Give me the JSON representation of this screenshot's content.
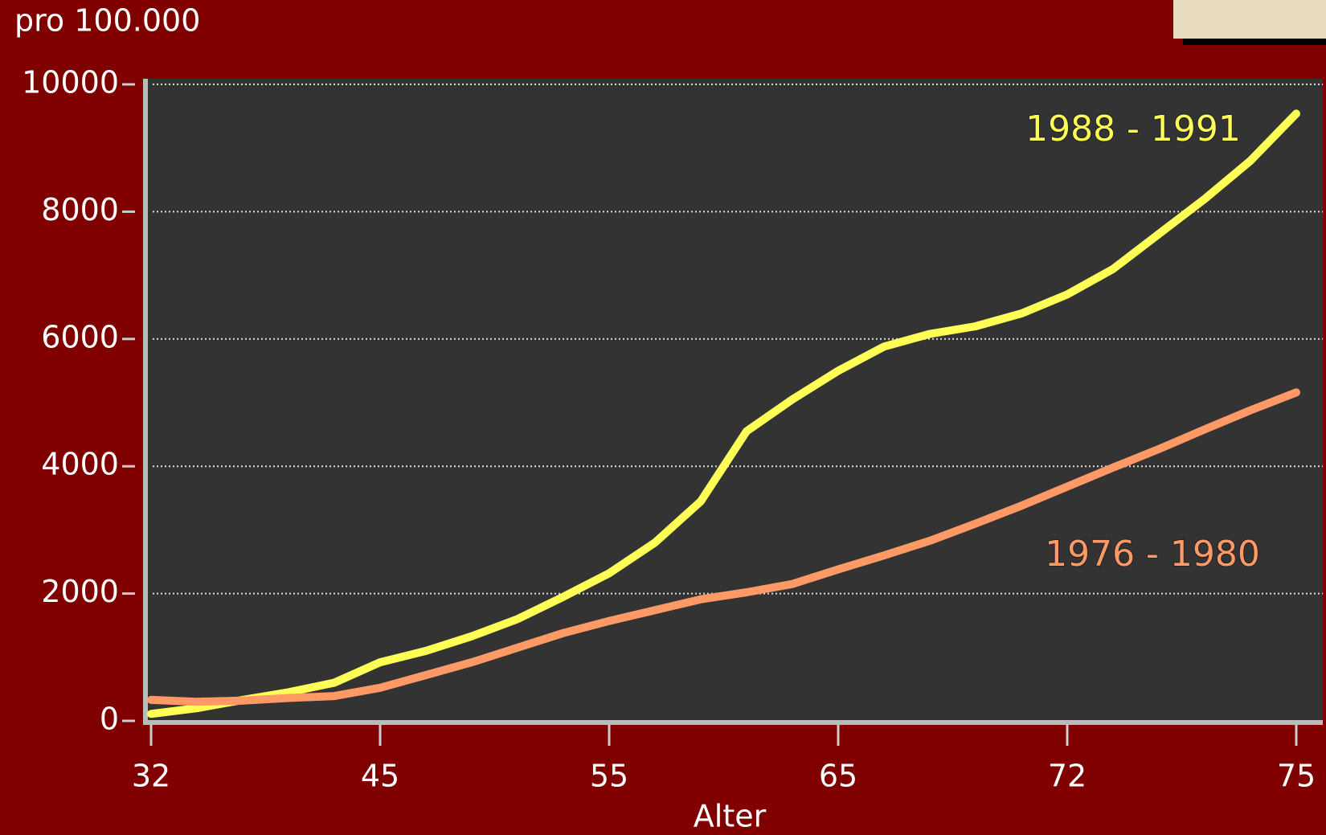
{
  "chart_data": {
    "type": "line",
    "title": "pro 100.000",
    "x_label": "Alter",
    "categories": [
      "32",
      null,
      null,
      null,
      null,
      "45",
      null,
      null,
      null,
      null,
      "55",
      null,
      null,
      null,
      null,
      "65",
      null,
      null,
      null,
      null,
      "72",
      null,
      null,
      null,
      null,
      "75"
    ],
    "series": [
      {
        "name": "1988 - 1991",
        "color": "#ffff55",
        "values": [
          110,
          200,
          330,
          450,
          600,
          920,
          1100,
          1330,
          1600,
          1950,
          2320,
          2800,
          3450,
          4550,
          5050,
          5500,
          5880,
          6080,
          6200,
          6400,
          6700,
          7100,
          7650,
          8200,
          8800,
          9540
        ]
      },
      {
        "name": "1976 - 1980",
        "color": "#ff9966",
        "values": [
          330,
          300,
          320,
          360,
          390,
          520,
          720,
          920,
          1150,
          1380,
          1570,
          1740,
          1910,
          2020,
          2150,
          2380,
          2600,
          2830,
          3100,
          3380,
          3680,
          3980,
          4270,
          4580,
          4880,
          5160
        ]
      }
    ],
    "ylim": [
      0,
      10000
    ],
    "yticks": [
      0,
      2000,
      4000,
      6000,
      8000,
      10000
    ],
    "grid": true
  }
}
